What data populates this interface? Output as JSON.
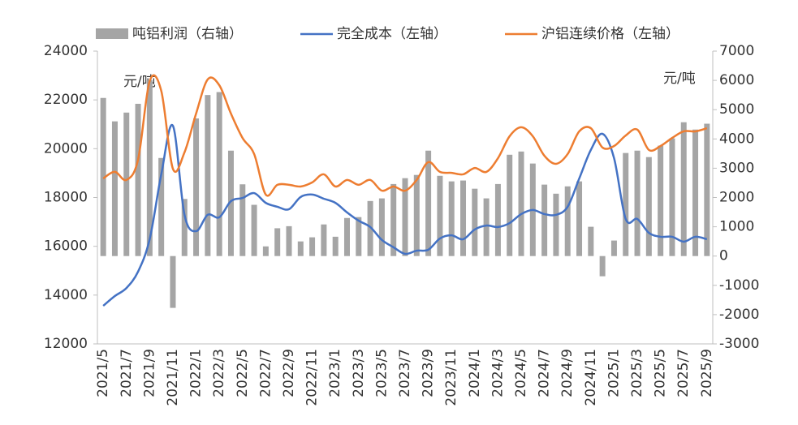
{
  "chart_data": {
    "type": "bar-line",
    "y_unit": "元/吨",
    "y2_unit": "元/吨",
    "categories": [
      "2021/5",
      null,
      "2021/7",
      null,
      "2021/9",
      null,
      "2021/11",
      null,
      "2022/1",
      null,
      "2022/3",
      null,
      "2022/5",
      null,
      "2022/7",
      null,
      "2022/9",
      null,
      "2022/11",
      null,
      "2023/1",
      null,
      "2023/3",
      null,
      "2023/5",
      null,
      "2023/7",
      null,
      "2023/9",
      null,
      "2023/11",
      null,
      "2024/1",
      null,
      "2024/3",
      null,
      "2024/5",
      null,
      "2024/7",
      null,
      "2024/9",
      null,
      "2024/11",
      null,
      "2025/1",
      null,
      "2025/3",
      null,
      "2025/5",
      null,
      "2025/7",
      null,
      "2025/9"
    ],
    "series": [
      {
        "name": "吨铝利润（右轴）",
        "type": "bar",
        "axis": "y2",
        "color": "#a5a5a5",
        "values": [
          5400,
          4600,
          4900,
          5200,
          6000,
          3350,
          -1770,
          1950,
          4700,
          5500,
          5600,
          3600,
          2450,
          1750,
          330,
          950,
          1020,
          500,
          640,
          1080,
          660,
          1300,
          1330,
          1880,
          1970,
          2460,
          2660,
          2770,
          3600,
          2740,
          2550,
          2580,
          2300,
          1970,
          2460,
          3460,
          3570,
          3160,
          2440,
          2130,
          2380,
          2550,
          1000,
          -690,
          530,
          3520,
          3600,
          3380,
          3770,
          4020,
          4570,
          4320,
          4520
        ]
      },
      {
        "name": "完全成本（左轴）",
        "type": "line",
        "axis": "y",
        "color": "#4472c4",
        "values": [
          13560,
          13960,
          14290,
          14960,
          16290,
          18950,
          20940,
          17290,
          16620,
          17290,
          17190,
          17850,
          17980,
          18180,
          17780,
          17620,
          17520,
          18020,
          18120,
          17950,
          17780,
          17390,
          17050,
          16790,
          16260,
          15960,
          15690,
          15820,
          15860,
          16320,
          16450,
          16290,
          16690,
          16850,
          16790,
          16950,
          17320,
          17490,
          17320,
          17290,
          17620,
          18780,
          19950,
          20610,
          19610,
          17120,
          17120,
          16550,
          16390,
          16390,
          16190,
          16390,
          16290
        ]
      },
      {
        "name": "沪铝连续价格（左轴）",
        "type": "line",
        "axis": "y",
        "color": "#ed7d31",
        "values": [
          18780,
          19050,
          18720,
          19550,
          22770,
          22370,
          19180,
          19850,
          21440,
          22840,
          22600,
          21440,
          20440,
          19780,
          18120,
          18520,
          18520,
          18450,
          18620,
          18950,
          18450,
          18720,
          18520,
          18720,
          18280,
          18450,
          18280,
          18720,
          19450,
          19050,
          19010,
          18950,
          19210,
          19050,
          19610,
          20510,
          20880,
          20510,
          19710,
          19380,
          19780,
          20710,
          20840,
          20050,
          20110,
          20540,
          20780,
          19950,
          20110,
          20440,
          20710,
          20710,
          20840
        ]
      }
    ],
    "ylim": [
      12000,
      24000
    ],
    "yticks": [
      12000,
      14000,
      16000,
      18000,
      20000,
      22000,
      24000
    ],
    "y2lim": [
      -3000,
      7000
    ],
    "y2ticks": [
      -3000,
      -2000,
      -1000,
      0,
      1000,
      2000,
      3000,
      4000,
      5000,
      6000,
      7000
    ],
    "legend": "top"
  }
}
